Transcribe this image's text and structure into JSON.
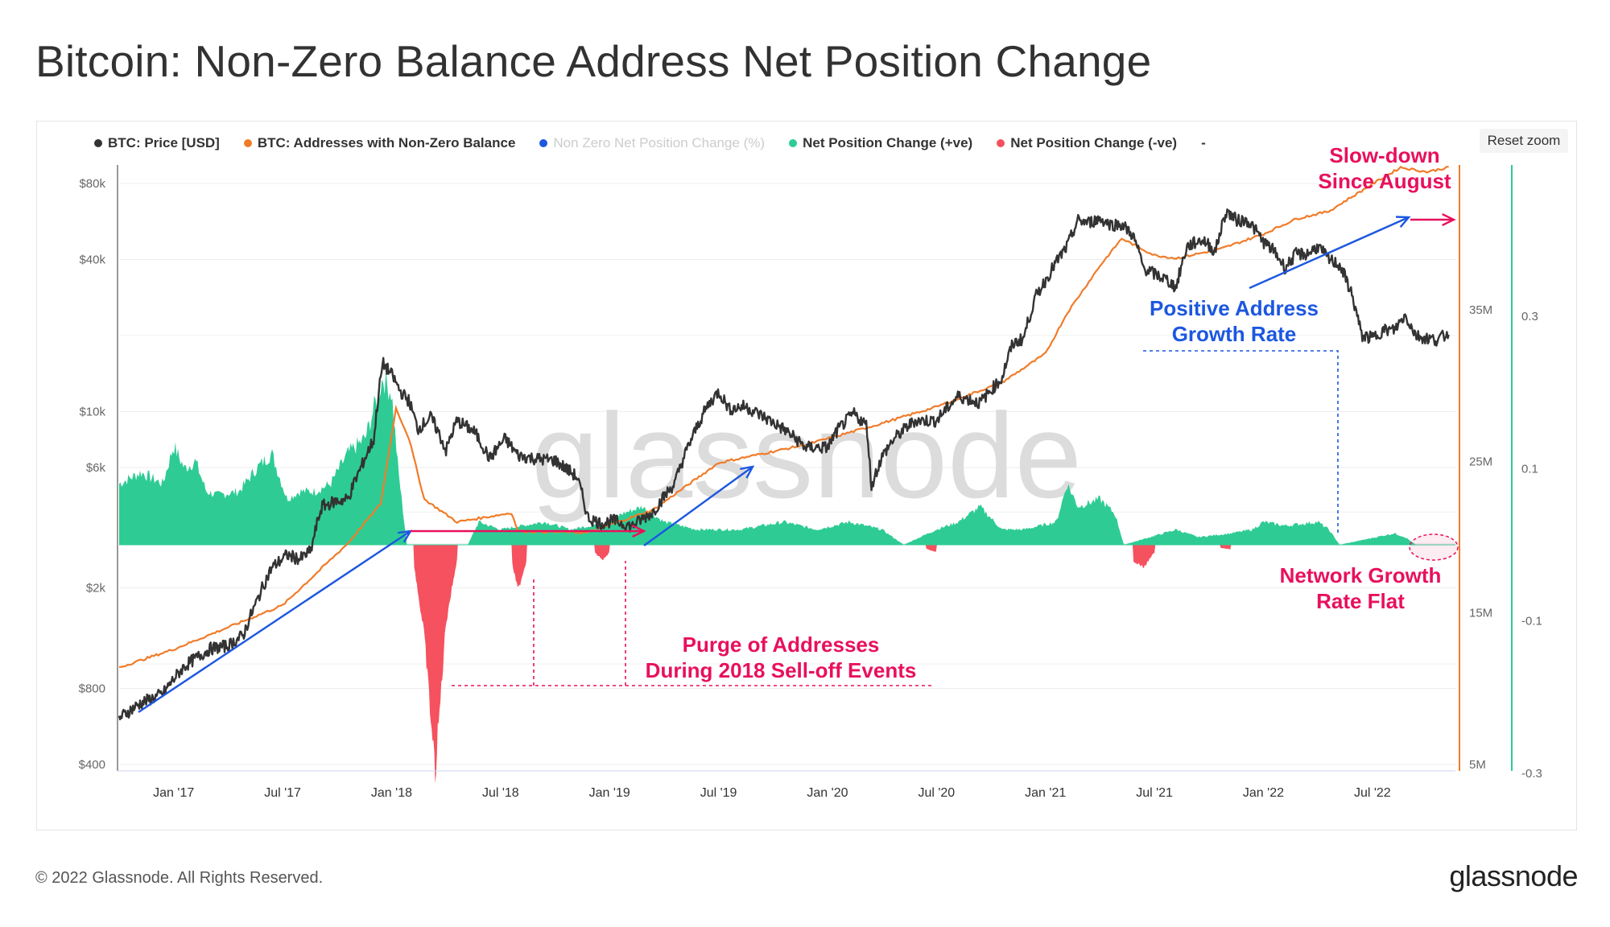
{
  "page_title": "Bitcoin: Non-Zero Balance Address Net Position Change",
  "reset_zoom_label": "Reset zoom",
  "legend": [
    {
      "label": "BTC: Price [USD]",
      "color": "#333333",
      "enabled": true
    },
    {
      "label": "BTC: Addresses with Non-Zero Balance",
      "color": "#f07c2a",
      "enabled": true
    },
    {
      "label": "Non Zero Net Position Change (%)",
      "color": "#1c57e0",
      "enabled": false
    },
    {
      "label": "Net Position Change (+ve)",
      "color": "#2ecc94",
      "enabled": true
    },
    {
      "label": "Net Position Change (-ve)",
      "color": "#f5515f",
      "enabled": true
    },
    {
      "label": "-",
      "color": "",
      "enabled": true
    }
  ],
  "watermark": "glassnode",
  "annotations": {
    "slowdown": [
      "Slow-down",
      "Since August"
    ],
    "positive_growth": [
      "Positive Address",
      "Growth Rate"
    ],
    "network_flat": [
      "Network Growth",
      "Rate Flat"
    ],
    "purge": [
      "Purge of Addresses",
      "During 2018 Sell-off Events"
    ]
  },
  "footer": {
    "copyright": "© 2022 Glassnode. All Rights Reserved.",
    "logo": "glassnode"
  },
  "colors": {
    "price": "#333333",
    "addresses": "#f07c2a",
    "positive": "#2ecc94",
    "negative": "#f5515f",
    "annotation_red": "#e8105d",
    "annotation_blue": "#1c57e0",
    "right_axis_addresses": "#f07c2a",
    "right_axis_change": "#2ecc94"
  },
  "chart_data": {
    "type": "line",
    "x_ticks": [
      "Jan '17",
      "Jul '17",
      "Jan '18",
      "Jul '18",
      "Jan '19",
      "Jul '19",
      "Jan '20",
      "Jul '20",
      "Jan '21",
      "Jul '21",
      "Jan '22",
      "Jul '22"
    ],
    "x_range": [
      "2016-10",
      "2022-11"
    ],
    "y_left": {
      "scale": "log",
      "ticks": [
        "$400",
        "$800",
        "$2k",
        "$6k",
        "$10k",
        "$40k",
        "$80k"
      ],
      "tick_values": [
        400,
        800,
        2000,
        6000,
        10000,
        40000,
        80000
      ]
    },
    "y_right_addresses": {
      "ticks": [
        "5M",
        "15M",
        "25M",
        "35M"
      ],
      "tick_values": [
        5,
        15,
        25,
        35
      ],
      "unit": "M"
    },
    "y_right_change": {
      "ticks": [
        "-0.3",
        "-0.1",
        "0.1",
        "0.3"
      ],
      "tick_values": [
        -0.3,
        -0.1,
        0.1,
        0.3
      ]
    },
    "series": [
      {
        "name": "BTC: Price [USD]",
        "x": [
          2016.75,
          2016.85,
          2016.95,
          2017.05,
          2017.1,
          2017.17,
          2017.25,
          2017.32,
          2017.38,
          2017.45,
          2017.52,
          2017.58,
          2017.63,
          2017.68,
          2017.74,
          2017.8,
          2017.86,
          2017.92,
          2017.96,
          2018.0,
          2018.04,
          2018.08,
          2018.12,
          2018.18,
          2018.25,
          2018.3,
          2018.38,
          2018.45,
          2018.52,
          2018.58,
          2018.66,
          2018.75,
          2018.85,
          2018.9,
          2018.96,
          2019.02,
          2019.1,
          2019.2,
          2019.3,
          2019.38,
          2019.45,
          2019.5,
          2019.55,
          2019.62,
          2019.7,
          2019.8,
          2019.9,
          2020.0,
          2020.05,
          2020.12,
          2020.18,
          2020.2,
          2020.25,
          2020.3,
          2020.4,
          2020.5,
          2020.6,
          2020.7,
          2020.8,
          2020.85,
          2020.9,
          2020.96,
          2021.0,
          2021.05,
          2021.1,
          2021.15,
          2021.2,
          2021.25,
          2021.3,
          2021.35,
          2021.4,
          2021.45,
          2021.5,
          2021.55,
          2021.6,
          2021.65,
          2021.72,
          2021.78,
          2021.83,
          2021.88,
          2021.93,
          2022.0,
          2022.05,
          2022.1,
          2022.15,
          2022.2,
          2022.25,
          2022.3,
          2022.35,
          2022.4,
          2022.45,
          2022.5,
          2022.55,
          2022.6,
          2022.65,
          2022.7,
          2022.75,
          2022.8,
          2022.85
        ],
        "y": [
          610,
          700,
          760,
          980,
          1050,
          1150,
          1180,
          1300,
          1750,
          2400,
          2700,
          2600,
          2800,
          4200,
          4400,
          4500,
          6000,
          7800,
          15500,
          14000,
          12000,
          11000,
          8500,
          9500,
          7000,
          9200,
          8300,
          6500,
          7800,
          6700,
          6500,
          6400,
          5500,
          3800,
          3600,
          3700,
          3500,
          4000,
          5200,
          7900,
          10500,
          12000,
          10200,
          10500,
          9600,
          8500,
          7200,
          7200,
          8500,
          9800,
          8800,
          5000,
          6600,
          7700,
          9200,
          9200,
          11500,
          10800,
          13500,
          18500,
          19500,
          29000,
          33000,
          39000,
          45000,
          57000,
          56000,
          58000,
          55000,
          55000,
          50000,
          37000,
          35000,
          33500,
          31000,
          45000,
          48000,
          43000,
          62000,
          57000,
          57000,
          47000,
          43000,
          37000,
          42000,
          42000,
          45000,
          40000,
          38000,
          30000,
          20000,
          19500,
          21000,
          21000,
          24000,
          20000,
          19500,
          19200,
          20500
        ]
      },
      {
        "name": "BTC: Addresses with Non-Zero Balance",
        "x": [
          2016.75,
          2017.0,
          2017.5,
          2017.8,
          2017.95,
          2018.02,
          2018.08,
          2018.15,
          2018.3,
          2018.55,
          2018.58,
          2018.9,
          2019.0,
          2019.2,
          2019.5,
          2019.9,
          2020.2,
          2020.5,
          2020.8,
          2021.0,
          2021.1,
          2021.25,
          2021.35,
          2021.5,
          2021.6,
          2021.8,
          2022.0,
          2022.15,
          2022.3,
          2022.5,
          2022.63,
          2022.75,
          2022.85
        ],
        "y": [
          11.4,
          12.6,
          15.5,
          19.6,
          22.2,
          28.5,
          26.5,
          22.5,
          21.0,
          21.6,
          20.4,
          20.3,
          20.8,
          21.8,
          24.9,
          26.1,
          27.3,
          28.6,
          30.2,
          32.1,
          34.8,
          37.9,
          39.7,
          38.6,
          38.4,
          39.0,
          40.0,
          41.0,
          41.5,
          43.3,
          44.4,
          44.1,
          44.4
        ]
      },
      {
        "name": "Net Position Change (+ve)",
        "x": [
          2016.75,
          2016.85,
          2016.95,
          2017.0,
          2017.05,
          2017.1,
          2017.15,
          2017.2,
          2017.3,
          2017.38,
          2017.45,
          2017.52,
          2017.58,
          2017.65,
          2017.72,
          2017.8,
          2017.88,
          2017.92,
          2017.96,
          2018.0,
          2018.03,
          2018.07,
          2018.35,
          2018.4,
          2018.5,
          2018.7,
          2018.82,
          2019.0,
          2019.05,
          2019.15,
          2019.25,
          2019.4,
          2019.5,
          2019.6,
          2019.8,
          2019.95,
          2020.1,
          2020.25,
          2020.35,
          2020.5,
          2020.6,
          2020.7,
          2020.8,
          2020.9,
          2021.05,
          2021.1,
          2021.15,
          2021.25,
          2021.32,
          2021.36,
          2021.6,
          2021.7,
          2021.85,
          2021.95,
          2022.0,
          2022.1,
          2022.25,
          2022.3,
          2022.35,
          2022.6,
          2022.65,
          2022.7
        ],
        "y": [
          0.08,
          0.095,
          0.08,
          0.13,
          0.1,
          0.11,
          0.07,
          0.065,
          0.07,
          0.1,
          0.12,
          0.06,
          0.07,
          0.07,
          0.08,
          0.12,
          0.14,
          0.18,
          0.22,
          0.2,
          0.1,
          0.0,
          0.0,
          0.03,
          0.02,
          0.03,
          0.02,
          0.03,
          0.04,
          0.05,
          0.03,
          0.02,
          0.02,
          0.02,
          0.03,
          0.02,
          0.03,
          0.02,
          0.0,
          0.02,
          0.03,
          0.05,
          0.02,
          0.02,
          0.03,
          0.08,
          0.05,
          0.06,
          0.04,
          0.0,
          0.02,
          0.01,
          0.015,
          0.02,
          0.03,
          0.025,
          0.03,
          0.02,
          0.0,
          0.015,
          0.01,
          0.0
        ]
      },
      {
        "name": "Net Position Change (-ve)",
        "x": [
          2018.1,
          2018.15,
          2018.2,
          2018.25,
          2018.3,
          2018.55,
          2018.58,
          2018.62,
          2018.93,
          2018.97,
          2019.0,
          2020.45,
          2020.5,
          2021.4,
          2021.45,
          2021.5,
          2021.8,
          2021.85
        ],
        "y": [
          -0.02,
          -0.12,
          -0.3,
          -0.1,
          -0.02,
          -0.02,
          -0.06,
          -0.02,
          -0.01,
          -0.02,
          -0.01,
          -0.005,
          -0.01,
          -0.02,
          -0.03,
          -0.01,
          -0.004,
          -0.006
        ]
      }
    ]
  }
}
